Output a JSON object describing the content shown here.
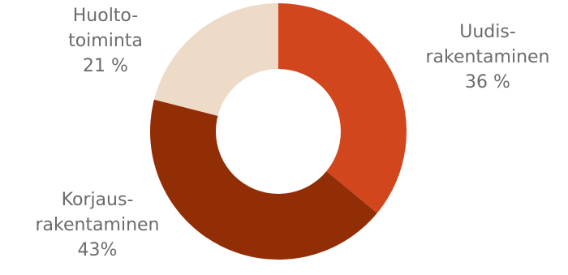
{
  "chart_data": {
    "type": "donut",
    "title": "",
    "series": [
      {
        "slices": [
          {
            "label_lines": [
              "Uudis-",
              "rakentaminen",
              "36 %"
            ],
            "value": 36,
            "color": "#d2461e"
          },
          {
            "label_lines": [
              "Korjaus-",
              "rakentaminen",
              "43%"
            ],
            "value": 43,
            "color": "#922e05"
          },
          {
            "label_lines": [
              "Huolto-",
              "toiminta",
              "21 %"
            ],
            "value": 21,
            "color": "#eddac7"
          }
        ]
      }
    ],
    "start": "top",
    "direction": "clockwise"
  }
}
